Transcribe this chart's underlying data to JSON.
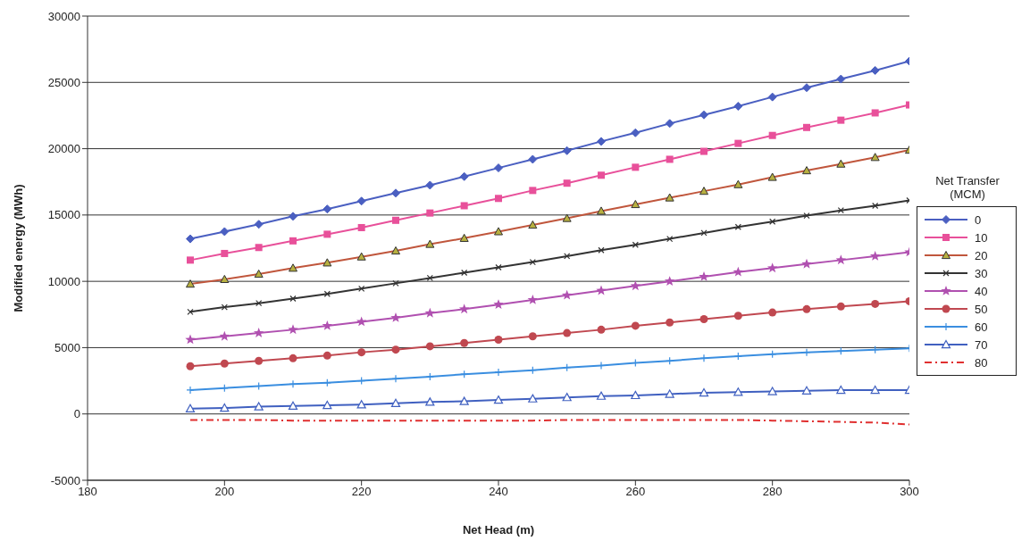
{
  "chart_data": {
    "type": "line",
    "xlabel": "Net Head (m)",
    "ylabel": "Modified energy (MWh)",
    "legend_title": "Net Transfer (MCM)",
    "legend": "right",
    "grid": "y",
    "x": [
      195,
      200,
      205,
      210,
      215,
      220,
      225,
      230,
      235,
      240,
      245,
      250,
      255,
      260,
      265,
      270,
      275,
      280,
      285,
      290,
      295,
      300
    ],
    "xlim": [
      180,
      300
    ],
    "xticks": [
      180,
      200,
      220,
      240,
      260,
      280,
      300
    ],
    "ylim": [
      -5000,
      30000
    ],
    "yticks": [
      -5000,
      0,
      5000,
      10000,
      15000,
      20000,
      25000,
      30000
    ],
    "series": [
      {
        "name": "0",
        "color": "#4a5fc1",
        "marker": "diamond",
        "values": [
          13200,
          13750,
          14300,
          14900,
          15450,
          16050,
          16650,
          17250,
          17900,
          18550,
          19200,
          19850,
          20550,
          21200,
          21900,
          22550,
          23200,
          23900,
          24600,
          25250,
          25900,
          26600
        ]
      },
      {
        "name": "10",
        "color": "#e8509a",
        "marker": "square",
        "values": [
          11600,
          12100,
          12550,
          13050,
          13550,
          14050,
          14600,
          15150,
          15700,
          16250,
          16850,
          17400,
          18000,
          18600,
          19200,
          19800,
          20400,
          21000,
          21600,
          22150,
          22700,
          23300
        ]
      },
      {
        "name": "20",
        "color": "#c0563c",
        "marker": "triangle",
        "values": [
          9800,
          10150,
          10550,
          11000,
          11400,
          11850,
          12300,
          12800,
          13250,
          13750,
          14250,
          14750,
          15300,
          15800,
          16300,
          16800,
          17300,
          17850,
          18350,
          18850,
          19350,
          19900
        ]
      },
      {
        "name": "30",
        "color": "#333333",
        "marker": "cross",
        "values": [
          7700,
          8050,
          8350,
          8700,
          9050,
          9450,
          9850,
          10250,
          10650,
          11050,
          11450,
          11900,
          12350,
          12750,
          13200,
          13650,
          14100,
          14500,
          14950,
          15350,
          15700,
          16100
        ]
      },
      {
        "name": "40",
        "color": "#b050b0",
        "marker": "star",
        "values": [
          5600,
          5850,
          6100,
          6350,
          6650,
          6950,
          7250,
          7600,
          7900,
          8250,
          8600,
          8950,
          9300,
          9650,
          10000,
          10350,
          10700,
          11000,
          11300,
          11600,
          11900,
          12200
        ]
      },
      {
        "name": "50",
        "color": "#c04850",
        "marker": "circle",
        "values": [
          3600,
          3800,
          4000,
          4200,
          4400,
          4650,
          4850,
          5100,
          5350,
          5600,
          5850,
          6100,
          6350,
          6650,
          6900,
          7150,
          7400,
          7650,
          7900,
          8100,
          8300,
          8500
        ]
      },
      {
        "name": "60",
        "color": "#3a8ee0",
        "marker": "plus",
        "values": [
          1800,
          1950,
          2100,
          2250,
          2350,
          2500,
          2650,
          2800,
          3000,
          3150,
          3300,
          3500,
          3650,
          3850,
          4000,
          4200,
          4350,
          4500,
          4650,
          4750,
          4850,
          4950
        ]
      },
      {
        "name": "70",
        "color": "#4060c0",
        "marker": "triangle-open",
        "values": [
          400,
          450,
          550,
          600,
          650,
          700,
          800,
          900,
          950,
          1050,
          1150,
          1250,
          1350,
          1400,
          1500,
          1600,
          1650,
          1700,
          1750,
          1800,
          1800,
          1800
        ]
      },
      {
        "name": "80",
        "color": "#e03030",
        "marker": "none",
        "line_style": "dashed",
        "values": [
          -450,
          -450,
          -450,
          -500,
          -500,
          -500,
          -500,
          -500,
          -500,
          -500,
          -500,
          -450,
          -450,
          -450,
          -450,
          -450,
          -450,
          -500,
          -550,
          -600,
          -650,
          -800
        ]
      }
    ]
  }
}
